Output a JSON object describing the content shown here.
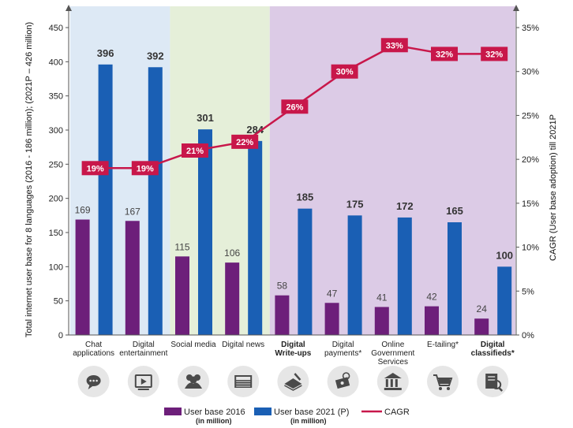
{
  "chart_data": {
    "type": "bar",
    "categories": [
      [
        "Chat",
        "applications"
      ],
      [
        "Digital",
        "entertainment"
      ],
      [
        "Social media"
      ],
      [
        "Digital news"
      ],
      [
        "Digital",
        "Write-ups"
      ],
      [
        "Digital",
        "payments*"
      ],
      [
        "Online",
        "Government",
        "Services"
      ],
      [
        "E-tailing*"
      ],
      [
        "Digital",
        "classifieds*"
      ]
    ],
    "bold_categories": [
      4,
      8
    ],
    "series": [
      {
        "name": "User base 2016",
        "unit_note": "(in million)",
        "type": "bar",
        "color": "#6d1f7a",
        "values": [
          169,
          167,
          115,
          106,
          58,
          47,
          41,
          42,
          24
        ]
      },
      {
        "name": "User base 2021 (P)",
        "unit_note": "(in million)",
        "type": "bar",
        "color": "#1a5fb4",
        "values": [
          396,
          392,
          301,
          284,
          185,
          175,
          172,
          165,
          100
        ]
      },
      {
        "name": "CAGR",
        "type": "line",
        "color": "#c8174a",
        "values": [
          19,
          19,
          21,
          22,
          26,
          30,
          33,
          32,
          32
        ],
        "labels": [
          "19%",
          "19%",
          "21%",
          "22%",
          "26%",
          "30%",
          "33%",
          "32%",
          "32%"
        ]
      }
    ],
    "ylabel": "Total internet user base for 8 languages (2016 - 186 million); (2021P – 426 million)",
    "y2label": "CAGR (User base adoption) till 2021P",
    "ylim": [
      0,
      450
    ],
    "yticks": [
      0,
      50,
      100,
      150,
      200,
      250,
      300,
      350,
      400,
      450
    ],
    "y2lim": [
      0,
      35
    ],
    "y2ticks": [
      "0%",
      "5%",
      "10%",
      "15%",
      "20%",
      "25%",
      "30%",
      "35%"
    ],
    "background_bands": [
      {
        "from": 0,
        "to": 1,
        "color": "#dde9f5"
      },
      {
        "from": 2,
        "to": 3,
        "color": "#e5efd9"
      },
      {
        "from": 4,
        "to": 8,
        "color": "#dccbe6"
      }
    ],
    "legend_position": "bottom"
  },
  "icons": [
    "chat-icon",
    "video-player-icon",
    "people-icon",
    "newspaper-icon",
    "book-pen-icon",
    "payment-icon",
    "government-building-icon",
    "shopping-cart-icon",
    "classifieds-icon"
  ],
  "colors": {
    "cagr_line": "#c8174a",
    "axis": "#555555",
    "icon_bg": "#e6e6e6",
    "icon_fg": "#4a4a4a"
  }
}
